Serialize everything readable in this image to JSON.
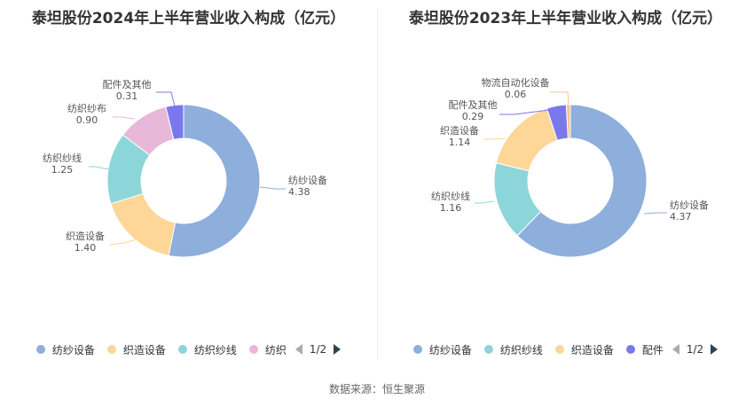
{
  "footer": {
    "source": "数据来源：恒生聚源"
  },
  "chart_data": [
    {
      "type": "pie",
      "title": "泰坦股份2024年上半年营业收入构成（亿元）",
      "categories": [
        "纺纱设备",
        "织造设备",
        "纺织纱线",
        "纺织纱布",
        "配件及其他"
      ],
      "values": [
        4.38,
        1.4,
        1.25,
        0.9,
        0.31
      ],
      "value_labels": [
        "4.38",
        "1.40",
        "1.25",
        "0.90",
        "0.31"
      ],
      "colors": [
        "#8eaedb",
        "#fdd698",
        "#8cd6d9",
        "#e8b8d9",
        "#7b78eb"
      ],
      "legend_visible": [
        "纺纱设备",
        "织造设备",
        "纺织纱线",
        "纺织"
      ],
      "legend_page": "1/2",
      "legend_position": "bottom"
    },
    {
      "type": "pie",
      "title": "泰坦股份2023年上半年营业收入构成（亿元）",
      "categories": [
        "纺纱设备",
        "纺织纱线",
        "织造设备",
        "配件及其他",
        "物流自动化设备"
      ],
      "values": [
        4.37,
        1.16,
        1.14,
        0.29,
        0.06
      ],
      "value_labels": [
        "4.37",
        "1.16",
        "1.14",
        "0.29",
        "0.06"
      ],
      "colors": [
        "#8eaedb",
        "#8cd6d9",
        "#fdd698",
        "#7b78eb",
        "#f5c48f"
      ],
      "legend_visible": [
        "纺纱设备",
        "纺织纱线",
        "织造设备",
        "配件"
      ],
      "legend_page": "1/2",
      "legend_position": "bottom"
    }
  ]
}
